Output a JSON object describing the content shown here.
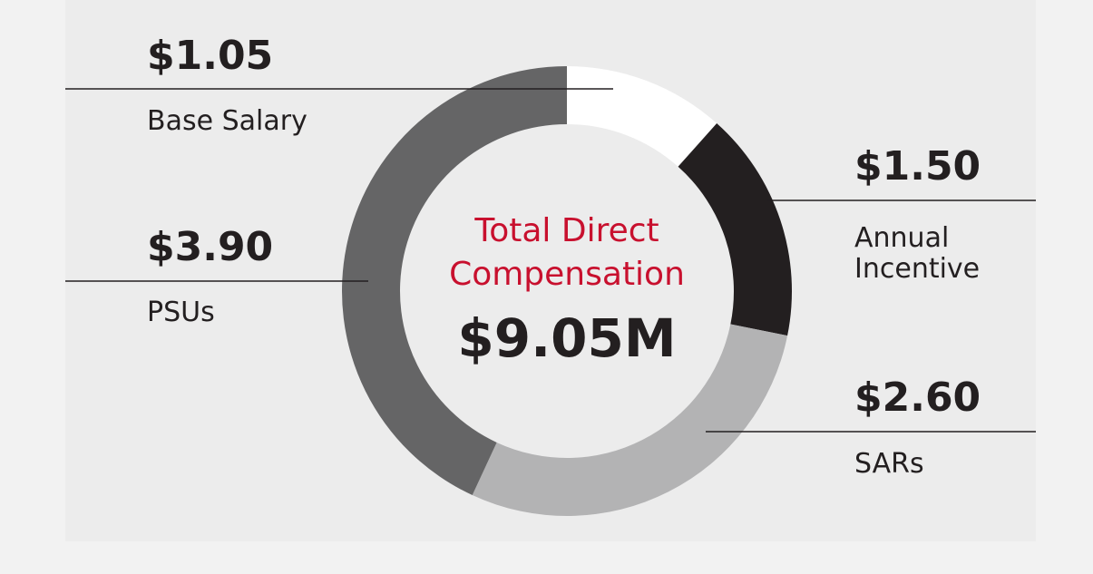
{
  "chart_data": {
    "type": "pie",
    "center_title_line1": "Total Direct",
    "center_title_line2": "Compensation",
    "center_value": "$9.05M",
    "slices": [
      {
        "key": "base",
        "label": "Base Salary",
        "value": 1.05,
        "value_label": "$1.05",
        "color": "#ffffff"
      },
      {
        "key": "annual",
        "label_line1": "Annual",
        "label_line2": "Incentive",
        "value": 1.5,
        "value_label": "$1.50",
        "color": "#231f20"
      },
      {
        "key": "sars",
        "label": "SARs",
        "value": 2.6,
        "value_label": "$2.60",
        "color": "#b3b3b4"
      },
      {
        "key": "psus",
        "label": "PSUs",
        "value": 3.9,
        "value_label": "$3.90",
        "color": "#656566"
      }
    ],
    "accent_color": "#c8102e",
    "leader_line_color": "#231f20"
  }
}
